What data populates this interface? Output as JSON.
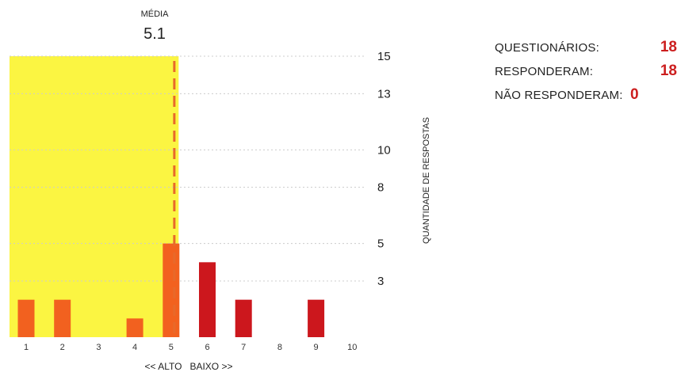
{
  "colors": {
    "highlight_zone": "#fbf542",
    "bar_alto": "#f2611f",
    "bar_baixo": "#cc171d",
    "mean_line": "#e8692a",
    "gridline": "#cccccc",
    "stat_value": "#cc1e1e"
  },
  "stats": {
    "questionarios": {
      "label": "QUESTIONÁRIOS:",
      "value": "18"
    },
    "responderam": {
      "label": "RESPONDERAM:",
      "value": "18"
    },
    "nao_responderam": {
      "label": "NÃO RESPONDERAM:",
      "value": "0"
    }
  },
  "chart_data": {
    "type": "bar",
    "mean_label": "MÉDIA",
    "mean_value": "5.1",
    "mean": 5.1,
    "categories": [
      "1",
      "2",
      "3",
      "4",
      "5",
      "6",
      "7",
      "8",
      "9",
      "10"
    ],
    "values": [
      2,
      2,
      0,
      1,
      5,
      4,
      2,
      0,
      2,
      0
    ],
    "highlight_range": [
      1,
      5
    ],
    "xlabel": "<< ALTO   BAIXO >>",
    "ylabel": "QUANTIDADE DE RESPOSTAS",
    "yticks": [
      3,
      5,
      8,
      10,
      13,
      15
    ],
    "ylim": [
      0,
      15
    ],
    "grid": true,
    "axis_side": "right"
  }
}
